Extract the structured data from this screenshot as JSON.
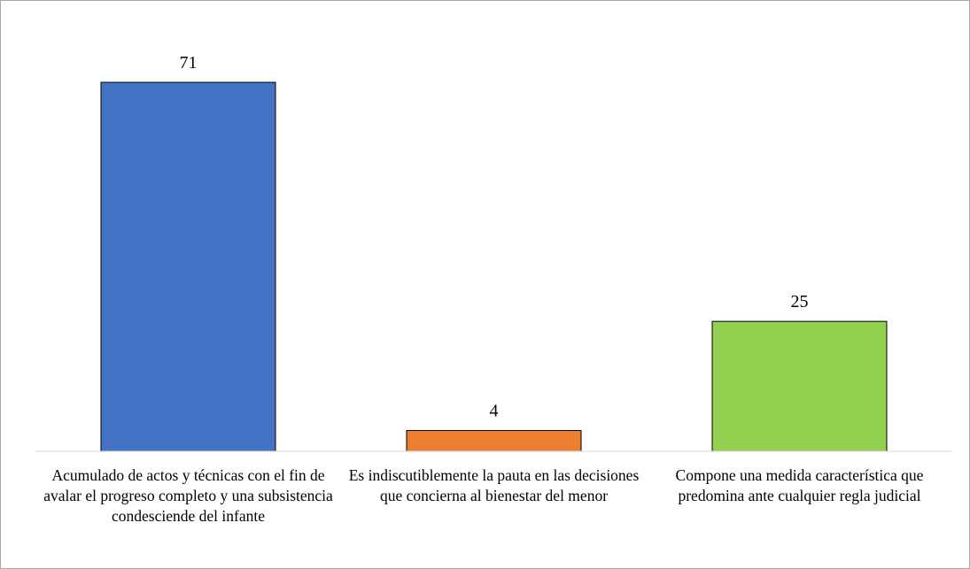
{
  "chart_data": {
    "type": "bar",
    "categories": [
      "Acumulado de actos y técnicas con el fin de avalar el progreso completo y una subsistencia condesciende del infante",
      "Es indiscutiblemente la pauta en las decisiones que concierna al bienestar del menor",
      "Compone una medida característica que predomina ante cualquier regla judicial"
    ],
    "values": [
      71,
      4,
      25
    ],
    "colors": [
      "#4472c4",
      "#ed7d31",
      "#92d050"
    ]
  }
}
